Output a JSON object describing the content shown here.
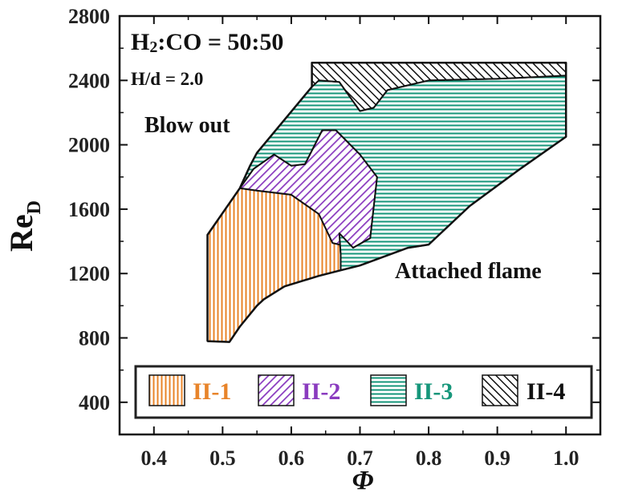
{
  "chart_data": {
    "type": "area",
    "xlabel": "Φ",
    "ylabel": "Re",
    "ylabel_sub": "D",
    "xlim": [
      0.35,
      1.05
    ],
    "ylim": [
      200,
      2800
    ],
    "xticks": [
      "0.4",
      "0.5",
      "0.6",
      "0.7",
      "0.8",
      "0.9",
      "1.0"
    ],
    "yticks": [
      "400",
      "800",
      "1200",
      "1600",
      "2000",
      "2400",
      "2800"
    ],
    "annotations": {
      "composition": "H2:CO = 50:50",
      "composition_parts": [
        "H",
        "2",
        ":CO = 50:50"
      ],
      "ratio": "H/d = 2.0",
      "blow_out": "Blow out",
      "attached": "Attached flame"
    },
    "series": [
      {
        "name": "II-1",
        "color": "#e8842a",
        "pattern": "vertical",
        "points": [
          [
            0.478,
            1440
          ],
          [
            0.525,
            1730
          ],
          [
            0.55,
            1715
          ],
          [
            0.6,
            1690
          ],
          [
            0.64,
            1570
          ],
          [
            0.67,
            1450
          ],
          [
            0.672,
            1320
          ],
          [
            0.672,
            1220
          ],
          [
            0.64,
            1185
          ],
          [
            0.59,
            1120
          ],
          [
            0.56,
            1040
          ],
          [
            0.55,
            1000
          ],
          [
            0.525,
            870
          ],
          [
            0.51,
            775
          ],
          [
            0.478,
            780
          ]
        ]
      },
      {
        "name": "II-2",
        "color": "#8a3bbf",
        "pattern": "diagonal",
        "points": [
          [
            0.525,
            1730
          ],
          [
            0.545,
            1850
          ],
          [
            0.575,
            1940
          ],
          [
            0.6,
            1870
          ],
          [
            0.62,
            1880
          ],
          [
            0.645,
            2090
          ],
          [
            0.665,
            2090
          ],
          [
            0.7,
            1940
          ],
          [
            0.725,
            1800
          ],
          [
            0.715,
            1420
          ],
          [
            0.69,
            1360
          ],
          [
            0.66,
            1390
          ],
          [
            0.64,
            1570
          ],
          [
            0.6,
            1690
          ],
          [
            0.55,
            1715
          ]
        ]
      },
      {
        "name": "II-3",
        "color": "#16967a",
        "pattern": "horizontal",
        "points": [
          [
            0.54,
            1870
          ],
          [
            0.55,
            1950
          ],
          [
            0.63,
            2360
          ],
          [
            0.64,
            2400
          ],
          [
            0.67,
            2390
          ],
          [
            0.7,
            2210
          ],
          [
            0.72,
            2230
          ],
          [
            0.74,
            2340
          ],
          [
            0.8,
            2400
          ],
          [
            0.9,
            2410
          ],
          [
            1.0,
            2430
          ],
          [
            1.0,
            2050
          ],
          [
            0.93,
            1840
          ],
          [
            0.86,
            1620
          ],
          [
            0.8,
            1380
          ],
          [
            0.77,
            1360
          ],
          [
            0.7,
            1250
          ],
          [
            0.672,
            1220
          ],
          [
            0.672,
            1320
          ],
          [
            0.67,
            1450
          ],
          [
            0.69,
            1360
          ],
          [
            0.715,
            1420
          ],
          [
            0.725,
            1800
          ],
          [
            0.7,
            1940
          ],
          [
            0.665,
            2090
          ],
          [
            0.645,
            2090
          ],
          [
            0.62,
            1880
          ],
          [
            0.6,
            1870
          ],
          [
            0.575,
            1940
          ],
          [
            0.545,
            1850
          ],
          [
            0.525,
            1730
          ]
        ]
      },
      {
        "name": "II-4",
        "color": "#111111",
        "pattern": "diagonal-back",
        "points": [
          [
            0.63,
            2510
          ],
          [
            1.0,
            2510
          ],
          [
            1.0,
            2430
          ],
          [
            0.9,
            2410
          ],
          [
            0.8,
            2400
          ],
          [
            0.74,
            2340
          ],
          [
            0.72,
            2230
          ],
          [
            0.7,
            2210
          ],
          [
            0.67,
            2390
          ],
          [
            0.64,
            2400
          ],
          [
            0.63,
            2360
          ]
        ]
      }
    ],
    "boundary": [
      [
        0.478,
        780
      ],
      [
        0.478,
        1440
      ],
      [
        0.525,
        1730
      ],
      [
        0.54,
        1870
      ],
      [
        0.55,
        1950
      ],
      [
        0.63,
        2360
      ],
      [
        0.63,
        2510
      ],
      [
        1.0,
        2510
      ],
      [
        1.0,
        2050
      ],
      [
        0.93,
        1840
      ],
      [
        0.86,
        1620
      ],
      [
        0.8,
        1380
      ],
      [
        0.77,
        1360
      ],
      [
        0.7,
        1250
      ],
      [
        0.672,
        1220
      ],
      [
        0.64,
        1185
      ],
      [
        0.59,
        1120
      ],
      [
        0.56,
        1040
      ],
      [
        0.55,
        1000
      ],
      [
        0.525,
        870
      ],
      [
        0.51,
        775
      ],
      [
        0.478,
        780
      ]
    ]
  }
}
